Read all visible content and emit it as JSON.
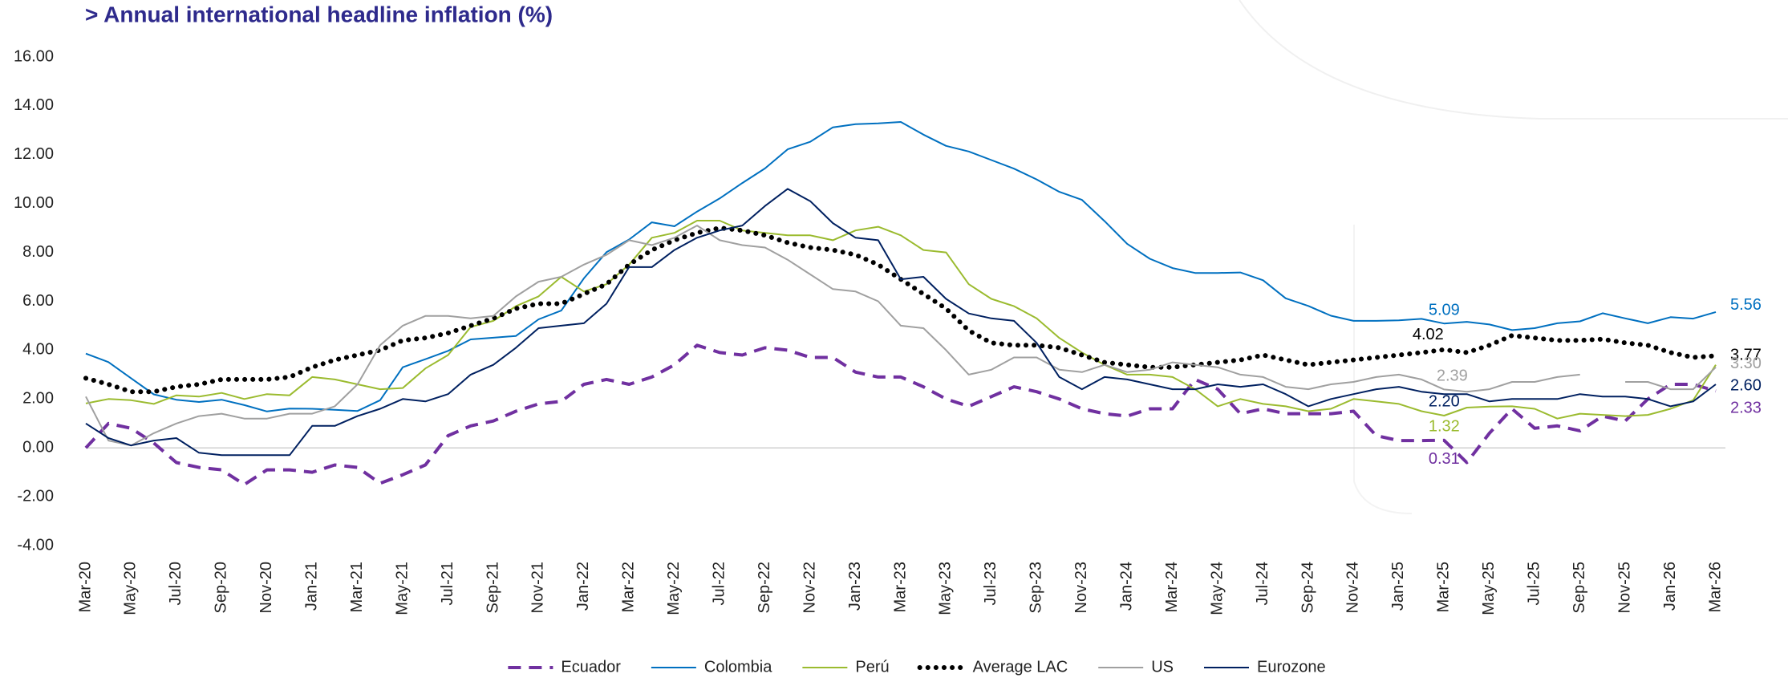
{
  "chart_data": {
    "type": "line",
    "title": "> Annual international headline inflation (%)",
    "categories": [
      "Mar-20",
      null,
      "May-20",
      null,
      "Jul-20",
      null,
      "Sep-20",
      null,
      "Nov-20",
      null,
      "Jan-21",
      null,
      "Mar-21",
      null,
      "May-21",
      null,
      "Jul-21",
      null,
      "Sep-21",
      null,
      "Nov-21",
      null,
      "Jan-22",
      null,
      "Mar-22",
      null,
      "May-22",
      null,
      "Jul-22",
      null,
      "Sep-22",
      null,
      "Nov-22",
      null,
      "Jan-23",
      null,
      "Mar-23",
      null,
      "May-23",
      null,
      "Jul-23",
      null,
      "Sep-23",
      null,
      "Nov-23",
      null,
      "Jan-24",
      null,
      "Mar-24",
      null,
      "May-24",
      null,
      "Jul-24",
      null,
      "Sep-24",
      null,
      "Nov-24",
      null,
      "Jan-25",
      null,
      "Mar-25",
      null,
      "May-25",
      null,
      "Jul-25",
      null,
      "Sep-25",
      null,
      "Nov-25",
      null,
      "Jan-26",
      null,
      "Mar-26"
    ],
    "ylim": [
      -4,
      16
    ],
    "yticks": [
      {
        "value": 16,
        "label": "16.00"
      },
      {
        "value": 14,
        "label": "14.00"
      },
      {
        "value": 12,
        "label": "12.00"
      },
      {
        "value": 10,
        "label": "10.00"
      },
      {
        "value": 8,
        "label": "8.00"
      },
      {
        "value": 6,
        "label": "6.00"
      },
      {
        "value": 4,
        "label": "4.00"
      },
      {
        "value": 2,
        "label": "2.00"
      },
      {
        "value": 0,
        "label": "0.00"
      },
      {
        "value": -2,
        "label": "-2.00"
      },
      {
        "value": -4,
        "label": "-4.00"
      }
    ],
    "grid": false,
    "legend": "bottom",
    "series": [
      {
        "name": "Ecuador",
        "color": "#7030a0",
        "style": "dashed",
        "values": [
          0.0,
          1.0,
          0.8,
          0.2,
          -0.6,
          -0.8,
          -0.9,
          -1.5,
          -0.9,
          -0.9,
          -1.0,
          -0.7,
          -0.8,
          -1.45,
          -1.1,
          -0.7,
          0.5,
          0.9,
          1.1,
          1.5,
          1.8,
          1.9,
          2.6,
          2.8,
          2.6,
          2.9,
          3.4,
          4.2,
          3.9,
          3.8,
          4.1,
          4.0,
          3.7,
          3.7,
          3.1,
          2.9,
          2.9,
          2.5,
          2.0,
          1.7,
          2.1,
          2.5,
          2.3,
          2.0,
          1.6,
          1.4,
          1.3,
          1.6,
          1.6,
          2.8,
          2.4,
          1.4,
          1.6,
          1.4,
          1.4,
          1.4,
          1.5,
          0.5,
          0.3,
          0.3,
          0.31,
          -0.6,
          0.6,
          1.6,
          0.8,
          0.9,
          0.7,
          1.3,
          1.1,
          2.0,
          2.6,
          2.6,
          2.33
        ],
        "value_labels": [
          null,
          null,
          null,
          null,
          null,
          null,
          null,
          null,
          null,
          null,
          null,
          null,
          null,
          null,
          null,
          null,
          null,
          null,
          null,
          null,
          null,
          null,
          null,
          null,
          null,
          null,
          null,
          null,
          null,
          null,
          null,
          null,
          null,
          null,
          null,
          null,
          null,
          null,
          null,
          null,
          null,
          null,
          null,
          null,
          null,
          null,
          null,
          null,
          null,
          null,
          null,
          null,
          null,
          null,
          null,
          null,
          null,
          null,
          null,
          null,
          "0.31",
          null,
          null,
          null,
          null,
          null,
          null,
          null,
          null,
          null,
          null,
          null,
          "2.33"
        ]
      },
      {
        "name": "Colombia",
        "color": "#0070c0",
        "style": "solid",
        "values": [
          3.86,
          3.51,
          2.85,
          2.19,
          1.97,
          1.88,
          1.97,
          1.75,
          1.49,
          1.61,
          1.6,
          1.56,
          1.51,
          1.95,
          3.3,
          3.63,
          3.97,
          4.44,
          4.51,
          4.58,
          5.26,
          5.62,
          6.94,
          8.01,
          8.53,
          9.23,
          9.07,
          9.67,
          10.21,
          10.84,
          11.44,
          12.22,
          12.53,
          13.12,
          13.25,
          13.28,
          13.34,
          12.82,
          12.36,
          12.13,
          11.78,
          11.43,
          10.99,
          10.48,
          10.15,
          9.28,
          8.35,
          7.74,
          7.36,
          7.16,
          7.16,
          7.18,
          6.86,
          6.12,
          5.81,
          5.41,
          5.2,
          5.2,
          5.22,
          5.28,
          5.09,
          5.16,
          5.05,
          4.82,
          4.9,
          5.1,
          5.18,
          5.51,
          5.3,
          5.1,
          5.35,
          5.29,
          5.56
        ],
        "value_labels": [
          null,
          null,
          null,
          null,
          null,
          null,
          null,
          null,
          null,
          null,
          null,
          null,
          null,
          null,
          null,
          null,
          null,
          null,
          null,
          null,
          null,
          null,
          null,
          null,
          null,
          null,
          null,
          null,
          null,
          null,
          null,
          null,
          null,
          null,
          null,
          null,
          null,
          null,
          null,
          null,
          null,
          null,
          null,
          null,
          null,
          null,
          null,
          null,
          null,
          null,
          null,
          null,
          null,
          null,
          null,
          null,
          null,
          null,
          null,
          null,
          "5.09",
          null,
          null,
          null,
          null,
          null,
          null,
          null,
          null,
          null,
          null,
          null,
          "5.56"
        ]
      },
      {
        "name": "Perú",
        "color": "#9bbb2f",
        "style": "solid",
        "values": [
          1.82,
          2.0,
          1.95,
          1.8,
          2.15,
          2.1,
          2.25,
          2.0,
          2.2,
          2.15,
          2.9,
          2.8,
          2.6,
          2.4,
          2.45,
          3.25,
          3.8,
          4.95,
          5.2,
          5.8,
          6.2,
          7.0,
          6.4,
          6.7,
          7.5,
          8.6,
          8.8,
          9.3,
          9.3,
          8.9,
          8.8,
          8.7,
          8.7,
          8.5,
          8.9,
          9.05,
          8.7,
          8.1,
          8.0,
          6.7,
          6.1,
          5.8,
          5.3,
          4.5,
          3.9,
          3.4,
          3.0,
          3.0,
          2.9,
          2.4,
          1.7,
          2.0,
          1.8,
          1.7,
          1.5,
          1.6,
          2.0,
          1.9,
          1.8,
          1.5,
          1.32,
          1.65,
          1.69,
          1.7,
          1.6,
          1.2,
          1.4,
          1.35,
          1.3,
          1.35,
          1.6,
          1.95,
          3.4
        ],
        "value_labels": [
          null,
          null,
          null,
          null,
          null,
          null,
          null,
          null,
          null,
          null,
          null,
          null,
          null,
          null,
          null,
          null,
          null,
          null,
          null,
          null,
          null,
          null,
          null,
          null,
          null,
          null,
          null,
          null,
          null,
          null,
          null,
          null,
          null,
          null,
          null,
          null,
          null,
          null,
          null,
          null,
          null,
          null,
          null,
          null,
          null,
          null,
          null,
          null,
          null,
          null,
          null,
          null,
          null,
          null,
          null,
          null,
          null,
          null,
          null,
          null,
          "1.32",
          null,
          null,
          null,
          null,
          null,
          null,
          null,
          null,
          null,
          null,
          null,
          null
        ]
      },
      {
        "name": "Average LAC",
        "color": "#000000",
        "style": "dotted",
        "values": [
          2.85,
          2.6,
          2.3,
          2.3,
          2.5,
          2.6,
          2.8,
          2.8,
          2.8,
          2.9,
          3.3,
          3.6,
          3.8,
          4.0,
          4.4,
          4.5,
          4.7,
          5.0,
          5.3,
          5.7,
          5.9,
          5.9,
          6.3,
          6.7,
          7.5,
          8.1,
          8.5,
          8.8,
          9.0,
          8.9,
          8.7,
          8.4,
          8.2,
          8.1,
          7.9,
          7.5,
          6.9,
          6.3,
          5.7,
          4.8,
          4.3,
          4.2,
          4.2,
          4.1,
          3.8,
          3.5,
          3.4,
          3.3,
          3.3,
          3.4,
          3.5,
          3.6,
          3.8,
          3.6,
          3.4,
          3.5,
          3.6,
          3.7,
          3.8,
          3.9,
          4.02,
          3.9,
          4.2,
          4.6,
          4.5,
          4.4,
          4.4,
          4.45,
          4.3,
          4.2,
          3.9,
          3.7,
          3.77
        ],
        "value_labels": [
          null,
          null,
          null,
          null,
          null,
          null,
          null,
          null,
          null,
          null,
          null,
          null,
          null,
          null,
          null,
          null,
          null,
          null,
          null,
          null,
          null,
          null,
          null,
          null,
          null,
          null,
          null,
          null,
          null,
          null,
          null,
          null,
          null,
          null,
          null,
          null,
          null,
          null,
          null,
          null,
          null,
          null,
          null,
          null,
          null,
          null,
          null,
          null,
          null,
          null,
          null,
          null,
          null,
          null,
          null,
          null,
          null,
          null,
          null,
          null,
          "4.02",
          null,
          null,
          null,
          null,
          null,
          null,
          null,
          null,
          null,
          null,
          null,
          "3.77"
        ]
      },
      {
        "name": "US",
        "color": "#a0a0a0",
        "style": "solid",
        "values": [
          2.1,
          0.3,
          0.1,
          0.6,
          1.0,
          1.3,
          1.4,
          1.2,
          1.2,
          1.4,
          1.4,
          1.7,
          2.6,
          4.2,
          5.0,
          5.4,
          5.4,
          5.3,
          5.4,
          6.2,
          6.8,
          7.0,
          7.5,
          7.9,
          8.5,
          8.3,
          8.6,
          9.1,
          8.5,
          8.3,
          8.2,
          7.7,
          7.1,
          6.5,
          6.4,
          6.0,
          5.0,
          4.9,
          4.0,
          3.0,
          3.2,
          3.7,
          3.7,
          3.2,
          3.1,
          3.4,
          3.1,
          3.2,
          3.5,
          3.4,
          3.3,
          3.0,
          2.9,
          2.5,
          2.4,
          2.6,
          2.7,
          2.9,
          3.0,
          2.8,
          2.39,
          2.3,
          2.4,
          2.7,
          2.7,
          2.9,
          3.0,
          null,
          2.7,
          2.7,
          2.4,
          2.4,
          3.3
        ],
        "value_labels": [
          null,
          null,
          null,
          null,
          null,
          null,
          null,
          null,
          null,
          null,
          null,
          null,
          null,
          null,
          null,
          null,
          null,
          null,
          null,
          null,
          null,
          null,
          null,
          null,
          null,
          null,
          null,
          null,
          null,
          null,
          null,
          null,
          null,
          null,
          null,
          null,
          null,
          null,
          null,
          null,
          null,
          null,
          null,
          null,
          null,
          null,
          null,
          null,
          null,
          null,
          null,
          null,
          null,
          null,
          null,
          null,
          null,
          null,
          null,
          null,
          "2.39",
          null,
          null,
          null,
          null,
          null,
          null,
          null,
          null,
          null,
          null,
          null,
          "3.30"
        ]
      },
      {
        "name": "Eurozone",
        "color": "#002060",
        "style": "solid",
        "values": [
          1.0,
          0.4,
          0.1,
          0.3,
          0.4,
          -0.2,
          -0.3,
          -0.3,
          -0.3,
          -0.3,
          0.9,
          0.9,
          1.3,
          1.6,
          2.0,
          1.9,
          2.2,
          3.0,
          3.4,
          4.1,
          4.9,
          5.0,
          5.1,
          5.9,
          7.4,
          7.4,
          8.1,
          8.6,
          8.9,
          9.1,
          9.9,
          10.6,
          10.1,
          9.2,
          8.6,
          8.5,
          6.9,
          7.0,
          6.1,
          5.5,
          5.3,
          5.2,
          4.3,
          2.9,
          2.4,
          2.9,
          2.8,
          2.6,
          2.4,
          2.4,
          2.6,
          2.5,
          2.6,
          2.2,
          1.7,
          2.0,
          2.2,
          2.4,
          2.5,
          2.3,
          2.2,
          2.2,
          1.9,
          2.0,
          2.0,
          2.0,
          2.2,
          2.1,
          2.1,
          2.0,
          1.7,
          1.9,
          2.6
        ],
        "value_labels": [
          null,
          null,
          null,
          null,
          null,
          null,
          null,
          null,
          null,
          null,
          null,
          null,
          null,
          null,
          null,
          null,
          null,
          null,
          null,
          null,
          null,
          null,
          null,
          null,
          null,
          null,
          null,
          null,
          null,
          null,
          null,
          null,
          null,
          null,
          null,
          null,
          null,
          null,
          null,
          null,
          null,
          null,
          null,
          null,
          null,
          null,
          null,
          null,
          null,
          null,
          null,
          null,
          null,
          null,
          null,
          null,
          null,
          null,
          null,
          null,
          "2.20",
          null,
          null,
          null,
          null,
          null,
          null,
          null,
          null,
          null,
          null,
          null,
          "2.60"
        ]
      }
    ]
  }
}
